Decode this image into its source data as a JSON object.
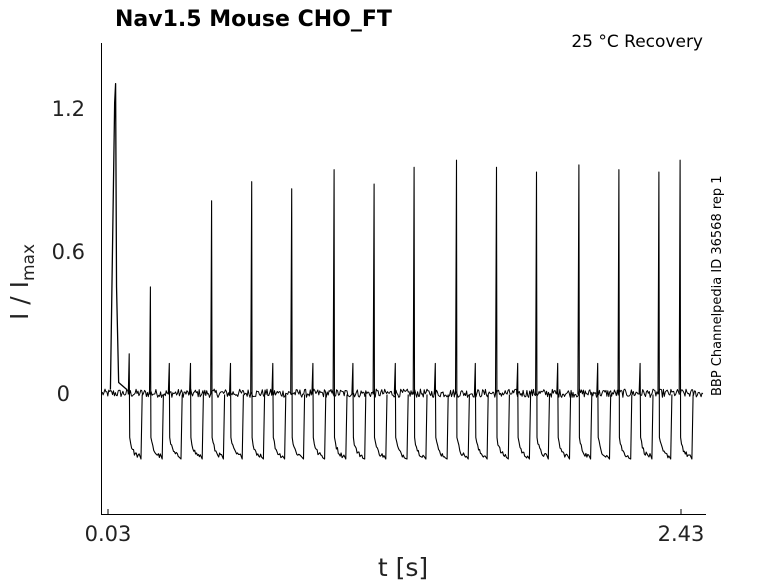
{
  "chart_data": {
    "type": "line",
    "title": "Nav1.5  Mouse  CHO_FT",
    "condition": "25 °C  Recovery",
    "side_label": "BBP Channelpedia ID 36568 rep 1",
    "xlabel": "t [s]",
    "ylabel": "I / I",
    "ylabel_sub": "max",
    "xlim": [
      -0.03,
      2.54
    ],
    "ylim": [
      -0.5,
      1.47
    ],
    "xticks": [
      0.03,
      2.43
    ],
    "xtick_labels": [
      "0.03",
      "2.43"
    ],
    "yticks": [
      0,
      0.6,
      1.2
    ],
    "ytick_labels": [
      "0",
      "0.6",
      "1.2"
    ],
    "grid": false,
    "legend": "none",
    "colors": {
      "trace": "#000000"
    },
    "series": [
      {
        "description_values": "recovery test pulses: time of pulse (s) and peak normalized current",
        "x": [
          0.09,
          0.18,
          0.26,
          0.35,
          0.44,
          0.52,
          0.61,
          0.7,
          0.78,
          0.87,
          0.96,
          1.04,
          1.13,
          1.22,
          1.3,
          1.39,
          1.48,
          1.56,
          1.65,
          1.74,
          1.82,
          1.91,
          2.0,
          2.08,
          2.17,
          2.26,
          2.34,
          2.43
        ],
        "values": [
          0.17,
          0.45,
          0.13,
          0.13,
          0.81,
          0.13,
          0.89,
          0.13,
          0.86,
          0.13,
          0.94,
          0.13,
          0.88,
          0.13,
          0.95,
          0.13,
          0.98,
          0.13,
          0.95,
          0.13,
          0.93,
          0.13,
          0.96,
          0.13,
          0.94,
          0.13,
          0.93,
          0.98
        ]
      }
    ]
  }
}
